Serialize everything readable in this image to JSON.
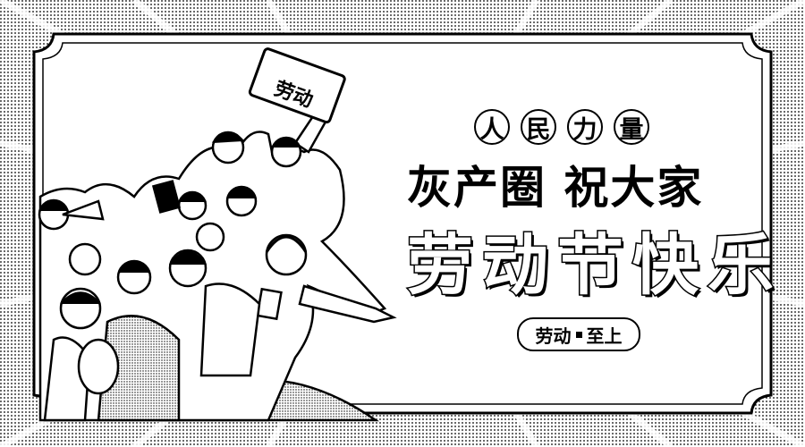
{
  "banner": {
    "circled_chars": [
      "人",
      "民",
      "力",
      "量"
    ],
    "line2": "灰产圈 祝大家",
    "line3": "劳动节快乐",
    "badge_left": "劳动",
    "badge_right": "至上"
  },
  "illustration": {
    "sign_text": "劳动"
  },
  "colors": {
    "ink": "#000000",
    "paper": "#ffffff"
  }
}
